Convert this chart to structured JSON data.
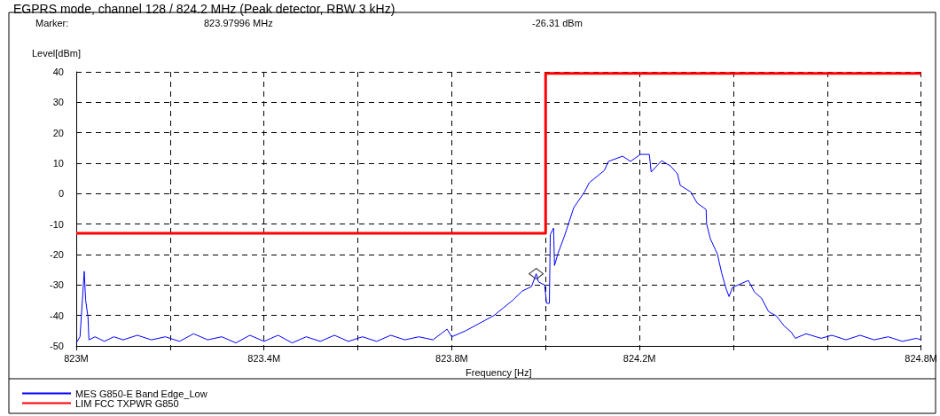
{
  "chart_data": {
    "type": "line",
    "title": "EGPRS mode, channel 128 / 824.2 MHz (Peak detector, RBW 3 kHz)",
    "annotations": [
      "Marker:",
      "823.97996 MHz",
      "-26.31 dBm"
    ],
    "xlabel": "Frequency [Hz]",
    "ylabel": "Level[dBm]",
    "xlim": [
      823.0,
      824.8
    ],
    "xticks": [
      {
        "value": 823.0,
        "label": "823M"
      },
      {
        "value": 823.2,
        "label": null
      },
      {
        "value": 823.4,
        "label": "823.4M"
      },
      {
        "value": 823.6,
        "label": null
      },
      {
        "value": 823.8,
        "label": "823.8M"
      },
      {
        "value": 824.0,
        "label": null
      },
      {
        "value": 824.2,
        "label": "824.2M"
      },
      {
        "value": 824.4,
        "label": null
      },
      {
        "value": 824.6,
        "label": null
      },
      {
        "value": 824.8,
        "label": "824.8M"
      }
    ],
    "ylim": [
      -50,
      40
    ],
    "yticks": [
      -50,
      -40,
      -30,
      -20,
      -10,
      0,
      10,
      20,
      30,
      40
    ],
    "grid": true,
    "legend": "bottom left",
    "marker": "none",
    "line_style": "solid",
    "series": [
      {
        "name": "MES G850-E Band Edge_Low",
        "color": "#0000ff",
        "x": [
          823.0,
          823.008,
          823.017,
          823.02,
          823.025,
          823.027,
          823.04,
          823.06,
          823.08,
          823.1,
          823.13,
          823.16,
          823.19,
          823.22,
          823.25,
          823.28,
          823.31,
          823.34,
          823.37,
          823.4,
          823.43,
          823.46,
          823.49,
          823.52,
          823.55,
          823.58,
          823.61,
          823.64,
          823.67,
          823.7,
          823.73,
          823.76,
          823.79,
          823.8,
          823.83,
          823.86,
          823.89,
          823.91,
          823.93,
          823.95,
          823.97,
          823.98,
          823.985,
          823.998,
          824.002,
          824.008,
          824.01,
          824.017,
          824.019,
          824.026,
          824.04,
          824.06,
          824.083,
          824.093,
          824.125,
          824.134,
          824.164,
          824.181,
          824.202,
          824.221,
          824.225,
          824.247,
          824.266,
          824.281,
          824.287,
          824.309,
          824.323,
          824.342,
          824.343,
          824.351,
          824.366,
          824.375,
          824.385,
          824.391,
          824.398,
          824.432,
          824.445,
          824.46,
          824.475,
          824.492,
          824.508,
          824.523,
          824.532,
          824.555,
          824.587,
          824.61,
          824.64,
          824.67,
          824.7,
          824.73,
          824.76,
          824.79,
          824.8
        ],
        "values": [
          -49,
          -47,
          -25.5,
          -35,
          -40.5,
          -48,
          -47,
          -48.5,
          -47,
          -48,
          -46.5,
          -48,
          -47,
          -48.5,
          -46,
          -48,
          -47,
          -49,
          -46.5,
          -48.5,
          -46.5,
          -49,
          -47,
          -48.5,
          -46.5,
          -48.5,
          -47,
          -48.5,
          -46.5,
          -48,
          -47,
          -48,
          -44.5,
          -47,
          -45,
          -42.5,
          -40,
          -37.5,
          -35,
          -32,
          -30.5,
          -26.3,
          -29,
          -30,
          -36,
          -36,
          -13.4,
          -11.3,
          -23.6,
          -19.8,
          -14,
          -4.6,
          0.6,
          3.6,
          7.6,
          10.6,
          12.3,
          10.6,
          12.9,
          12.9,
          7.1,
          10.8,
          9.1,
          6.5,
          2.7,
          0.6,
          -3.1,
          -5.2,
          -9.9,
          -14.8,
          -19.8,
          -26,
          -31.4,
          -33.8,
          -30.8,
          -28.5,
          -32.3,
          -34.3,
          -38.7,
          -40.2,
          -43.4,
          -45.4,
          -47.5,
          -46,
          -47.5,
          -46.5,
          -48,
          -46.5,
          -48,
          -47,
          -48.5,
          -47.5,
          -48
        ]
      },
      {
        "name": "LIM FCC TXPWR G850",
        "type": "step",
        "color": "#ff0000",
        "x": [
          823.0,
          824.0,
          824.8
        ],
        "values": [
          -13,
          39.5,
          39.5
        ]
      },
      {
        "type": "scatter",
        "marker": "diamond",
        "color": "#000000",
        "x": [
          823.97996
        ],
        "values": [
          -26.31
        ]
      }
    ]
  }
}
